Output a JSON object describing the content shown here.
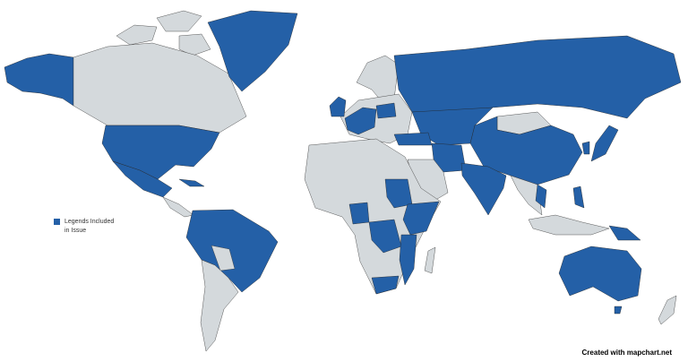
{
  "legend": {
    "label": "Legends Included in Issue",
    "color": "#2460a7"
  },
  "credit": "Created with mapchart.net",
  "colors": {
    "highlighted": "#2460a7",
    "default": "#d4d9dc",
    "background": "#ffffff"
  },
  "highlighted_countries": [
    "United States",
    "Alaska (US)",
    "Greenland",
    "Mexico",
    "Cuba",
    "Colombia",
    "Venezuela",
    "Ecuador",
    "Peru",
    "Brazil",
    "Guyana",
    "Uruguay",
    "United Kingdom",
    "Ireland",
    "France",
    "Germany",
    "Poland",
    "Russia",
    "Kazakhstan",
    "Turkey",
    "Iran",
    "Afghanistan",
    "China",
    "India",
    "Japan",
    "South Korea",
    "Vietnam",
    "Cambodia",
    "Philippines",
    "Papua New Guinea",
    "Sudan",
    "Nigeria",
    "Ethiopia",
    "Somalia",
    "Kenya",
    "DR Congo",
    "Tanzania",
    "Mozambique",
    "South Africa",
    "Australia"
  ]
}
